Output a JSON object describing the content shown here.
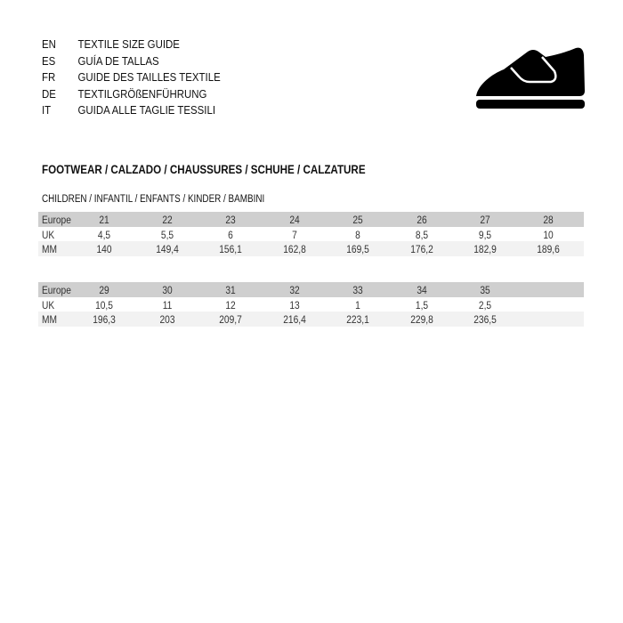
{
  "languages": [
    {
      "code": "EN",
      "title": "TEXTILE SIZE GUIDE"
    },
    {
      "code": "ES",
      "title": "GUÍA DE TALLAS"
    },
    {
      "code": "FR",
      "title": "GUIDE DES TAILLES TEXTILE"
    },
    {
      "code": "DE",
      "title": "TEXTILGRÖßENFÜHRUNG"
    },
    {
      "code": "IT",
      "title": "GUIDA ALLE TAGLIE TESSILI"
    }
  ],
  "icon": "shoe-velcro-icon",
  "section_title": "FOOTWEAR / CALZADO / CHAUSSURES / SCHUHE / CALZATURE",
  "subsection_title": "CHILDREN / INFANTIL / ENFANTS / KINDER / BAMBINI",
  "tables": [
    {
      "rows": [
        {
          "label": "Europe",
          "values": [
            "21",
            "22",
            "23",
            "24",
            "25",
            "26",
            "27",
            "28"
          ]
        },
        {
          "label": "UK",
          "values": [
            "4,5",
            "5,5",
            "6",
            "7",
            "8",
            "8,5",
            "9,5",
            "10"
          ]
        },
        {
          "label": "MM",
          "values": [
            "140",
            "149,4",
            "156,1",
            "162,8",
            "169,5",
            "176,2",
            "182,9",
            "189,6"
          ]
        }
      ]
    },
    {
      "rows": [
        {
          "label": "Europe",
          "values": [
            "29",
            "30",
            "31",
            "32",
            "33",
            "34",
            "35"
          ]
        },
        {
          "label": "UK",
          "values": [
            "10,5",
            "11",
            "12",
            "13",
            "1",
            "1,5",
            "2,5"
          ]
        },
        {
          "label": "MM",
          "values": [
            "196,3",
            "203",
            "209,7",
            "216,4",
            "223,1",
            "229,8",
            "236,5"
          ]
        }
      ]
    }
  ]
}
